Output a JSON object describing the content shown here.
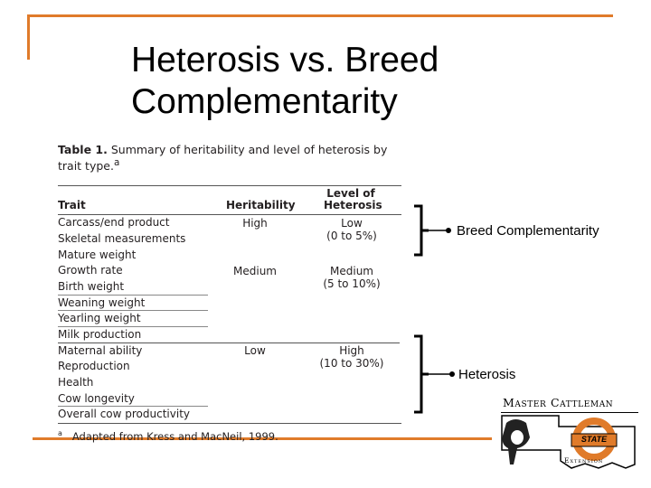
{
  "slide": {
    "title_line1": "Heterosis vs. Breed",
    "title_line2": "Complementarity"
  },
  "table": {
    "caption_bold": "Table 1.",
    "caption_text": " Summary of heritability and level of heterosis by trait type.",
    "caption_sup": "a",
    "headers": {
      "trait": "Trait",
      "heritability": "Heritability",
      "heterosis_line1": "Level of",
      "heterosis_line2": "Heterosis"
    },
    "rows": [
      "Carcass/end product",
      "Skeletal measurements",
      "Mature weight",
      "Growth rate",
      "Birth weight",
      "Weaning weight",
      "Yearling weight",
      "Milk production",
      "Maternal ability",
      "Reproduction",
      "Health",
      "Cow longevity",
      "Overall cow productivity"
    ],
    "groups": [
      {
        "heritability": "High",
        "heterosis": "Low",
        "range": "(0 to 5%)"
      },
      {
        "heritability": "Medium",
        "heterosis": "Medium",
        "range": "(5 to 10%)"
      },
      {
        "heritability": "Low",
        "heterosis": "High",
        "range": "(10 to 30%)"
      }
    ],
    "footnote_sup": "a",
    "footnote": "Adapted from Kress and MacNeil, 1999."
  },
  "annotations": {
    "upper": "Breed Complementarity",
    "lower": "Heterosis"
  },
  "logo": {
    "line1": "Master Cattleman",
    "badge": "STATE",
    "line2": "Extension"
  },
  "colors": {
    "accent": "#e07b2a"
  }
}
